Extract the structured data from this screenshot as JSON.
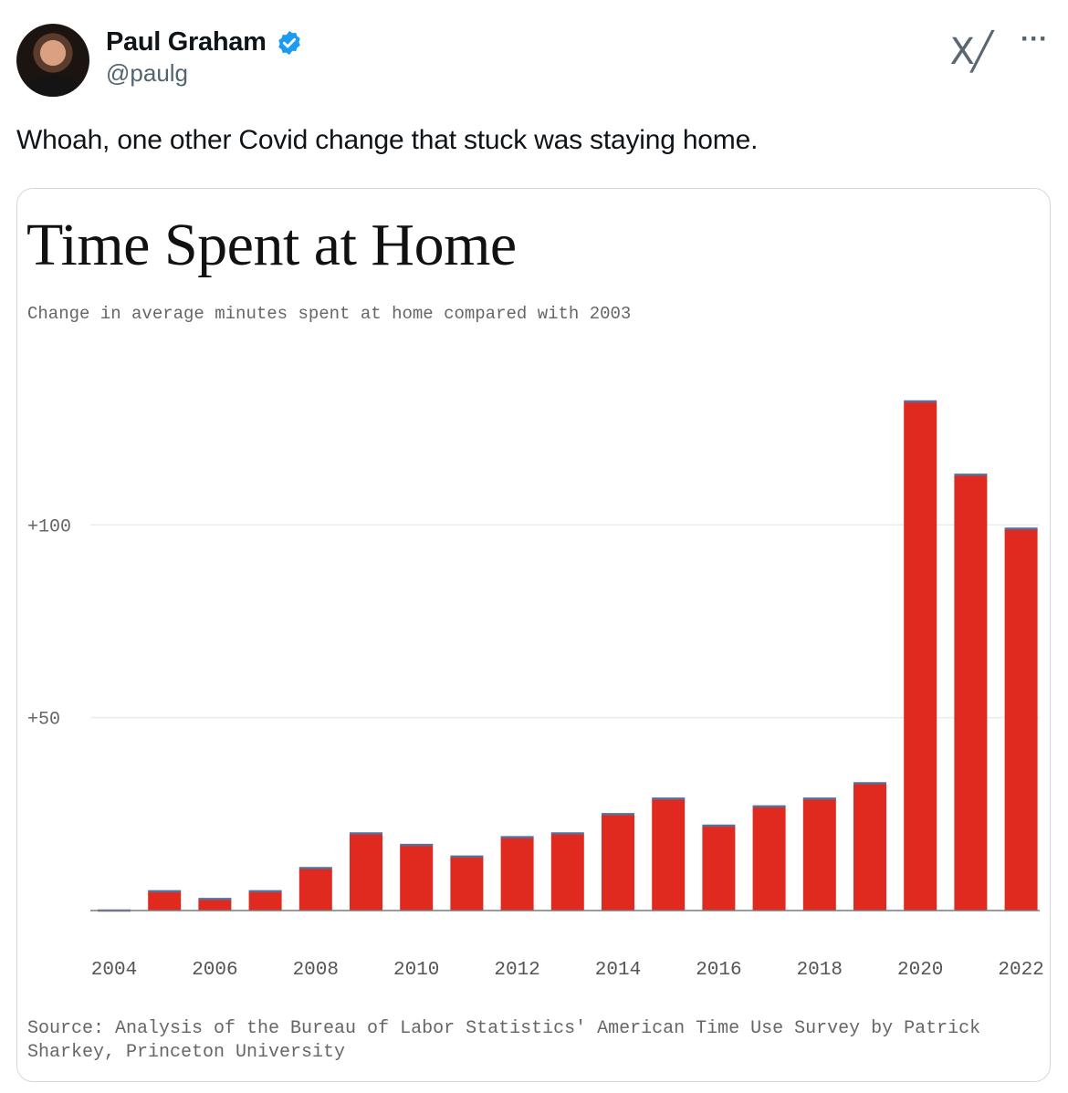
{
  "tweet": {
    "author_name": "Paul Graham",
    "handle": "@paulg",
    "text": "Whoah, one other Covid change that stuck was staying home.",
    "verified_color": "#1d9bf0",
    "x_logo": "X╱",
    "more_label": "···"
  },
  "chart_data": {
    "type": "bar",
    "title": "Time Spent at Home",
    "subtitle": "Change in average minutes spent at home compared with 2003",
    "source": "Source: Analysis of the Bureau of Labor Statistics' American Time Use Survey by Patrick Sharkey, Princeton University",
    "categories": [
      2004,
      2005,
      2006,
      2007,
      2008,
      2009,
      2010,
      2011,
      2012,
      2013,
      2014,
      2015,
      2016,
      2017,
      2018,
      2019,
      2020,
      2021,
      2022
    ],
    "values": [
      0,
      5,
      3,
      5,
      11,
      20,
      17,
      14,
      19,
      20,
      25,
      29,
      22,
      27,
      29,
      33,
      132,
      113,
      99
    ],
    "x_tick_labels": [
      "2004",
      "2006",
      "2008",
      "2010",
      "2012",
      "2014",
      "2016",
      "2018",
      "2020",
      "2022"
    ],
    "y_ticks": [
      50,
      100
    ],
    "y_tick_labels": [
      "+50",
      "+100"
    ],
    "ylim": [
      0,
      132
    ],
    "grid": true,
    "bar_color": "#e0291f",
    "bar_top_color": "#5b6f96"
  }
}
